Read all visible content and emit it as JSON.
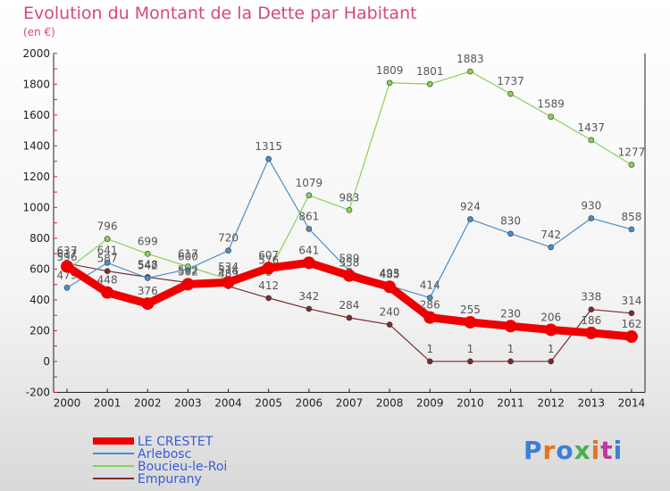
{
  "title": "Evolution du Montant de la Dette par Habitant",
  "unit": "(en €)",
  "logo": "Proxiti",
  "chart_data": {
    "type": "line",
    "categories": [
      "2000",
      "2001",
      "2002",
      "2003",
      "2004",
      "2005",
      "2006",
      "2007",
      "2008",
      "2009",
      "2010",
      "2011",
      "2012",
      "2013",
      "2014"
    ],
    "ylim": [
      -200,
      2000
    ],
    "yticks": [
      -200,
      0,
      200,
      400,
      600,
      800,
      1000,
      1200,
      1400,
      1600,
      1800,
      2000
    ],
    "grid": false,
    "legend_position": "bottom-left",
    "series": [
      {
        "name": "Empurany",
        "color": "#7a2c2c",
        "width": 1.2,
        "marker": 3,
        "values": [
          637,
          587,
          548,
          512,
          489,
          412,
          342,
          284,
          240,
          1,
          1,
          1,
          1,
          338,
          314
        ]
      },
      {
        "name": "Arlebosc",
        "color": "#4a8ec8",
        "width": 1.2,
        "marker": 3,
        "values": [
          479,
          641,
          542,
          600,
          720,
          1315,
          861,
          589,
          493,
          414,
          924,
          830,
          742,
          930,
          858
        ]
      },
      {
        "name": "Boucieu-le-Roi",
        "color": "#8ad15a",
        "width": 1.2,
        "marker": 3,
        "values": [
          596,
          796,
          699,
          617,
          534,
          576,
          1079,
          983,
          1809,
          1801,
          1883,
          1737,
          1589,
          1437,
          1277
        ]
      },
      {
        "name": "LE CRESTET",
        "color": "#ee0000",
        "width": 9,
        "marker": 7,
        "values": [
          617,
          448,
          376,
          502,
          514,
          607,
          641,
          558,
          485,
          286,
          255,
          230,
          206,
          186,
          162
        ]
      }
    ],
    "legend_order": [
      "LE CRESTET",
      "Arlebosc",
      "Boucieu-le-Roi",
      "Empurany"
    ]
  }
}
